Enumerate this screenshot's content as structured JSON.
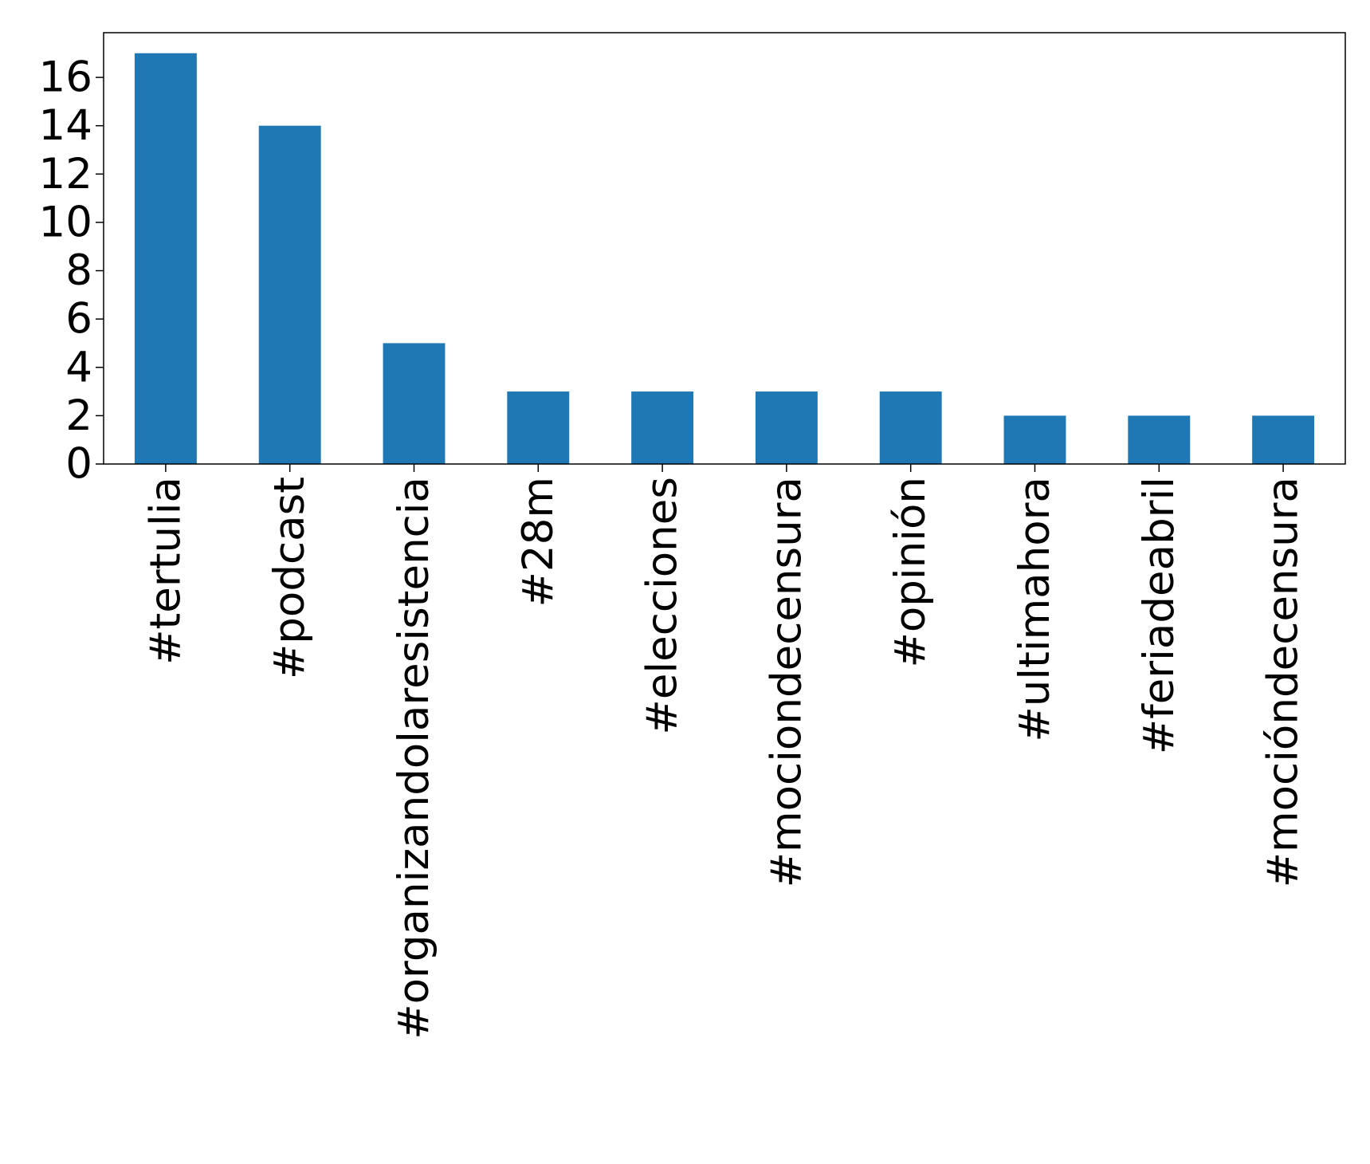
{
  "chart_data": {
    "type": "bar",
    "categories": [
      "#tertulia",
      "#podcast",
      "#organizandolaresistencia",
      "#28m",
      "#elecciones",
      "#mociondecensura",
      "#opinión",
      "#ultimahora",
      "#feriadeabril",
      "#mocióndecensura"
    ],
    "values": [
      17,
      14,
      5,
      3,
      3,
      3,
      3,
      2,
      2,
      2
    ],
    "color": "#1f77b4",
    "ylim": [
      0,
      17.85
    ],
    "yticks": [
      0,
      2,
      4,
      6,
      8,
      10,
      12,
      14,
      16
    ],
    "grid": false
  }
}
